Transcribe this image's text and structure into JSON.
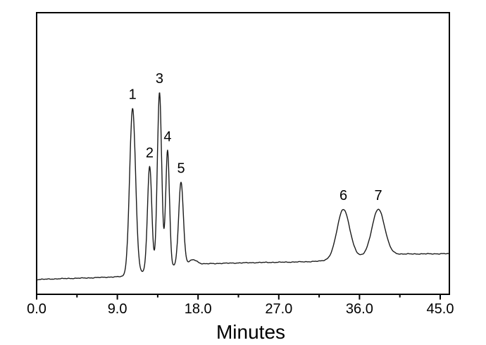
{
  "figure": {
    "background_color": "#ffffff",
    "border_color": "#000000",
    "trace_color": "#1b1b1b"
  },
  "chart_data": {
    "type": "line",
    "subtype": "chromatogram",
    "title": "",
    "xlabel": "Minutes",
    "ylabel": "",
    "grid": false,
    "legend": null,
    "x_axis": {
      "label": "Minutes",
      "range": [
        0.0,
        46.0
      ],
      "major_ticks": [
        {
          "value": 0.0,
          "label": "0.0"
        },
        {
          "value": 9.0,
          "label": "9.0"
        },
        {
          "value": 18.0,
          "label": "18.0"
        },
        {
          "value": 27.0,
          "label": "27.0"
        },
        {
          "value": 36.0,
          "label": "36.0"
        },
        {
          "value": 45.0,
          "label": "45.0"
        }
      ],
      "minor_tick_values": [
        4.5,
        13.5,
        22.5,
        31.5,
        40.5
      ]
    },
    "y_axis": {
      "label": "",
      "ticks": "none",
      "units": "arbitrary detector response"
    },
    "peaks": [
      {
        "label": "1",
        "retention_time_min": 10.7,
        "height_au": 0.91,
        "sigma_min": 0.33
      },
      {
        "label": "2",
        "retention_time_min": 12.6,
        "height_au": 0.57,
        "sigma_min": 0.24
      },
      {
        "label": "3",
        "retention_time_min": 13.7,
        "height_au": 0.965,
        "sigma_min": 0.24
      },
      {
        "label": "4",
        "retention_time_min": 14.6,
        "height_au": 0.64,
        "sigma_min": 0.21
      },
      {
        "label": "5",
        "retention_time_min": 16.1,
        "height_au": 0.455,
        "sigma_min": 0.26
      },
      {
        "label": "",
        "retention_time_min": 17.45,
        "height_au": 0.025,
        "sigma_min": 0.45
      },
      {
        "label": "6",
        "retention_time_min": 34.2,
        "height_au": 0.27,
        "sigma_min": 0.7
      },
      {
        "label": "7",
        "retention_time_min": 38.1,
        "height_au": 0.25,
        "sigma_min": 0.7
      }
    ],
    "baseline_drift": [
      [
        0.0,
        0.0
      ],
      [
        3.0,
        0.005
      ],
      [
        6.0,
        0.009
      ],
      [
        9.0,
        0.015
      ],
      [
        10.0,
        0.018
      ],
      [
        11.7,
        0.038
      ],
      [
        13.0,
        0.052
      ],
      [
        15.2,
        0.072
      ],
      [
        16.3,
        0.079
      ],
      [
        17.0,
        0.082
      ],
      [
        19.5,
        0.087
      ],
      [
        22.0,
        0.09
      ],
      [
        25.0,
        0.093
      ],
      [
        28.0,
        0.095
      ],
      [
        30.0,
        0.097
      ],
      [
        31.5,
        0.1
      ],
      [
        33.5,
        0.11
      ],
      [
        35.5,
        0.122
      ],
      [
        37.5,
        0.132
      ],
      [
        39.3,
        0.139
      ],
      [
        46.1,
        0.141
      ]
    ]
  }
}
